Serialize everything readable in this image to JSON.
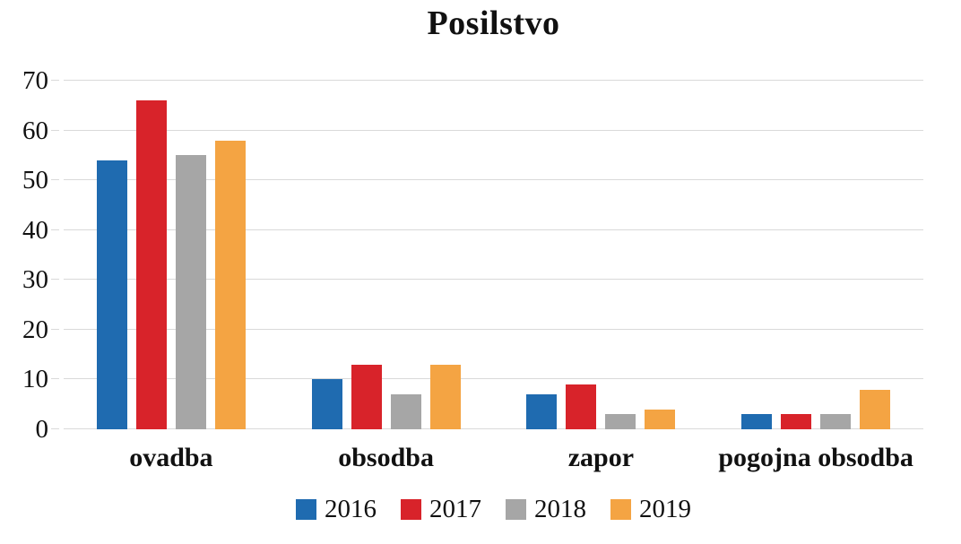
{
  "chart_data": {
    "type": "bar",
    "title": "Posilstvo",
    "categories": [
      "ovadba",
      "obsodba",
      "zapor",
      "pogojna obsodba"
    ],
    "series": [
      {
        "name": "2016",
        "color": "#1F6BB0",
        "values": [
          54,
          10,
          7,
          3
        ]
      },
      {
        "name": "2017",
        "color": "#D8232A",
        "values": [
          66,
          13,
          9,
          3
        ]
      },
      {
        "name": "2018",
        "color": "#A6A6A6",
        "values": [
          55,
          7,
          3,
          3
        ]
      },
      {
        "name": "2019",
        "color": "#F4A443",
        "values": [
          58,
          13,
          4,
          8
        ]
      }
    ],
    "xlabel": "",
    "ylabel": "",
    "ylim": [
      0,
      70
    ],
    "yticks": [
      0,
      10,
      20,
      30,
      40,
      50,
      60,
      70
    ],
    "grid": "horizontal",
    "gridline_color": "#D9D9D9",
    "legend_position": "bottom"
  }
}
